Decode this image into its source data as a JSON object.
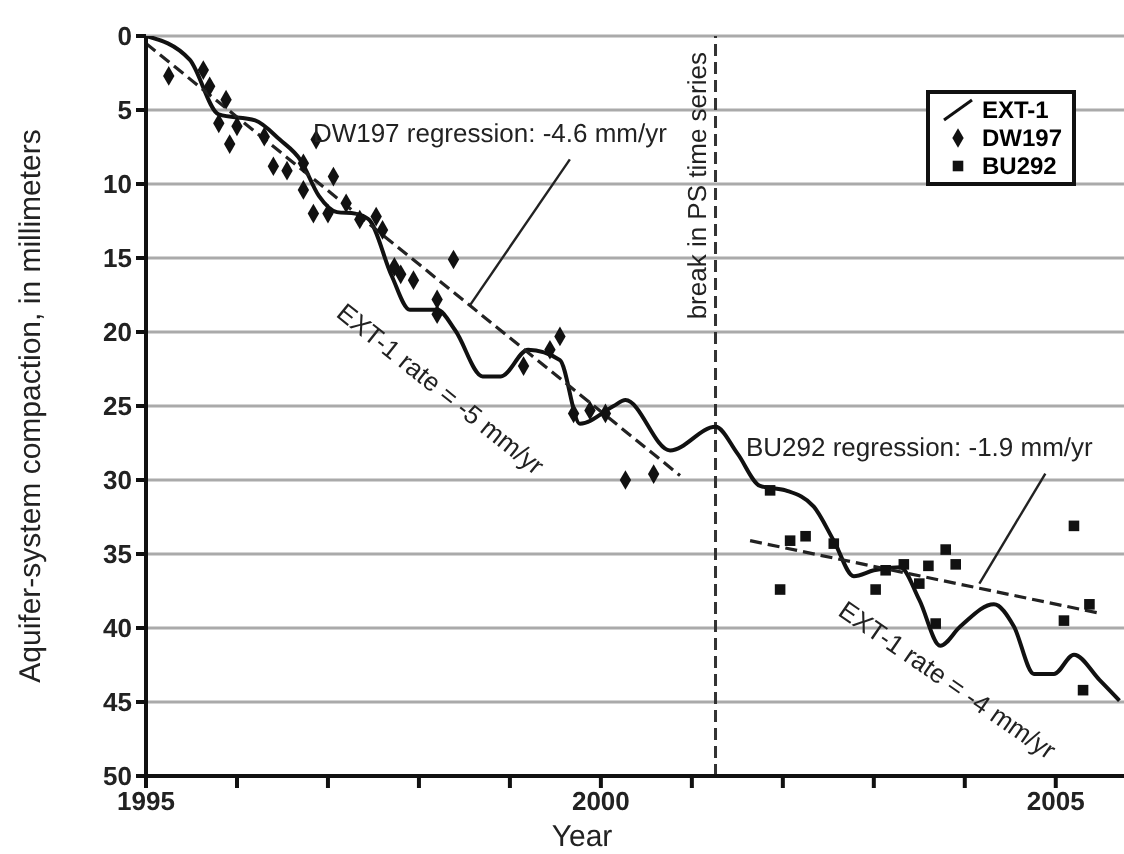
{
  "chart_data": {
    "type": "line",
    "xlabel": "Year",
    "ylabel": "Aquifer-system compaction, in millimeters",
    "xlim": [
      1995,
      2005.75
    ],
    "ylim": [
      50,
      0
    ],
    "xticks": [
      1995,
      {
        "value": 1996,
        "label": null
      },
      {
        "value": 1997,
        "label": null
      },
      {
        "value": 1998,
        "label": null
      },
      {
        "value": 1999,
        "label": null
      },
      2000,
      {
        "value": 2001,
        "label": null
      },
      {
        "value": 2002,
        "label": null
      },
      {
        "value": 2003,
        "label": null
      },
      {
        "value": 2004,
        "label": null
      },
      2005
    ],
    "yticks": [
      0,
      5,
      10,
      15,
      20,
      25,
      30,
      35,
      40,
      45,
      50
    ],
    "grid": "y",
    "legend": "top right",
    "series": [
      {
        "name": "EXT-1",
        "color": "#111111",
        "marker": "none",
        "line_style": "solid",
        "x": [
          1995,
          1995.48,
          1995.8,
          1996.2,
          1996.47,
          1996.7,
          1996.9,
          1997.1,
          1997.3,
          1997.45,
          1997.7,
          1997.9,
          1998.2,
          1998.4,
          1998.7,
          1998.9,
          1999.2,
          1999.55,
          1999.77,
          2000.14,
          2000.27,
          2000.76,
          2001.26,
          2001.5,
          2001.75,
          2002.03,
          2002.34,
          2002.56,
          2002.78,
          2003,
          2003.29,
          2003.5,
          2003.73,
          2003.95,
          2004.32,
          2004.54,
          2004.76,
          2004.98,
          2005.2,
          2005.48,
          2005.7
        ],
        "values": [
          0,
          1.6,
          5.3,
          5.7,
          7,
          8.4,
          10.8,
          11.9,
          12,
          12.4,
          16.2,
          18.5,
          18.5,
          19.9,
          23,
          23,
          21.2,
          21.9,
          26.2,
          25,
          24.6,
          28,
          26.4,
          28.2,
          30.4,
          30.7,
          31.8,
          34.1,
          36.5,
          36.1,
          35.9,
          38.1,
          41.2,
          39.9,
          38.4,
          39.9,
          43.1,
          43.1,
          41.8,
          43.5,
          44.9
        ]
      },
      {
        "name": "DW197",
        "type": "scatter",
        "color": "#111111",
        "marker": "diamond",
        "x": [
          1995.25,
          1995.63,
          1995.7,
          1995.88,
          1995.8,
          1995.92,
          1996,
          1996.3,
          1996.4,
          1996.55,
          1996.87,
          1996.73,
          1997.06,
          1996.73,
          1996.84,
          1997,
          1997.2,
          1997.35,
          1997.53,
          1997.6,
          1997.73,
          1997.8,
          1997.94,
          1998.2,
          1998.38,
          1998.2,
          1999.15,
          1999.44,
          1999.55,
          1999.7,
          1999.88,
          2000.05,
          2000.27,
          2000.58
        ],
        "values": [
          2.7,
          2.3,
          3.4,
          4.3,
          5.9,
          7.3,
          6.1,
          6.8,
          8.8,
          9.1,
          7,
          8.6,
          9.5,
          10.4,
          12,
          12,
          11.3,
          12.4,
          12.2,
          13.1,
          15.6,
          16.1,
          16.5,
          17.8,
          15.1,
          18.8,
          22.3,
          21.2,
          20.3,
          25.5,
          25.3,
          25.5,
          30,
          29.6
        ]
      },
      {
        "name": "BU292",
        "type": "scatter",
        "color": "#111111",
        "marker": "square",
        "x": [
          2001.86,
          2001.97,
          2002.08,
          2002.25,
          2002.56,
          2003.02,
          2003.13,
          2003.33,
          2003.5,
          2003.6,
          2003.68,
          2003.79,
          2003.9,
          2005.09,
          2005.2,
          2005.3,
          2005.37
        ],
        "values": [
          30.7,
          37.4,
          34.1,
          33.8,
          34.3,
          37.4,
          36.1,
          35.7,
          37,
          35.8,
          39.7,
          34.7,
          35.7,
          39.5,
          33.1,
          44.2,
          38.4
        ]
      },
      {
        "type": "line",
        "color": "#222222",
        "marker": "none",
        "line_style": "dashed",
        "x": [
          1995,
          2000.87
        ],
        "values": [
          0.5,
          29.7
        ]
      },
      {
        "type": "line",
        "color": "#222222",
        "marker": "none",
        "line_style": "dashed",
        "x": [
          2001.64,
          2005.48
        ],
        "values": [
          34.1,
          39
        ]
      }
    ],
    "ref_lines": [
      {
        "axis": "x",
        "value": 2001.26,
        "label": "break in PS  time series",
        "line_style": "dashed",
        "color": "#333333"
      }
    ],
    "annotations": [
      {
        "text": "DW197 regression: -4.6 mm/yr",
        "x": 1998.56,
        "y": 18.2
      },
      {
        "text": "EXT-1 rate = -5 mm/yr",
        "x": 1998.4,
        "y": 19.9
      },
      {
        "text": "BU292 regression: -1.9 mm/yr",
        "x": 2004.16,
        "y": 37
      },
      {
        "text": "EXT-1 rate = -4 mm/yr",
        "x": 2003.73,
        "y": 41.2
      }
    ]
  }
}
